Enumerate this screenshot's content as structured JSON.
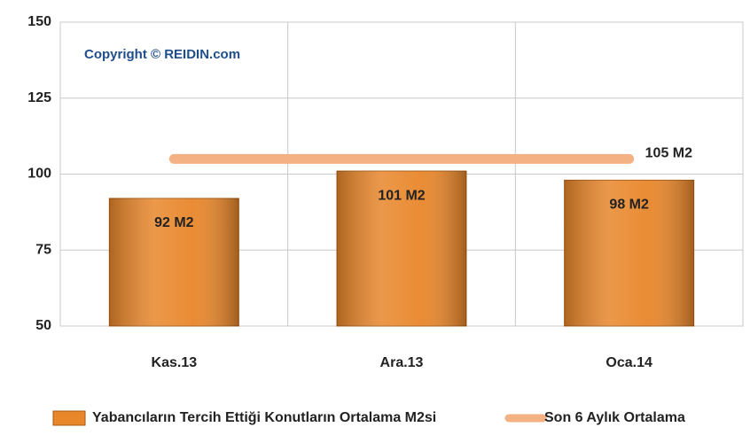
{
  "chart_data": {
    "type": "bar",
    "annotation": "Copyright © REIDIN.com",
    "categories": [
      "Kas.13",
      "Ara.13",
      "Oca.14"
    ],
    "series": [
      {
        "name": "Yabancıların Tercih Ettiği Konutların Ortalama M2si",
        "type": "bar",
        "color": "#e8862a",
        "values": [
          92,
          101,
          98
        ],
        "value_labels": [
          "92 M2",
          "101 M2",
          "98 M2"
        ]
      },
      {
        "name": "Son 6 Aylık Ortalama",
        "type": "line",
        "color": "#f4b183",
        "values": [
          105,
          105,
          105
        ],
        "value_labels": [
          null,
          null,
          "105 M2"
        ]
      }
    ],
    "ylim": [
      50,
      150
    ],
    "yticks": [
      50,
      75,
      100,
      125,
      150
    ],
    "grid": true,
    "legend": "bottom"
  }
}
